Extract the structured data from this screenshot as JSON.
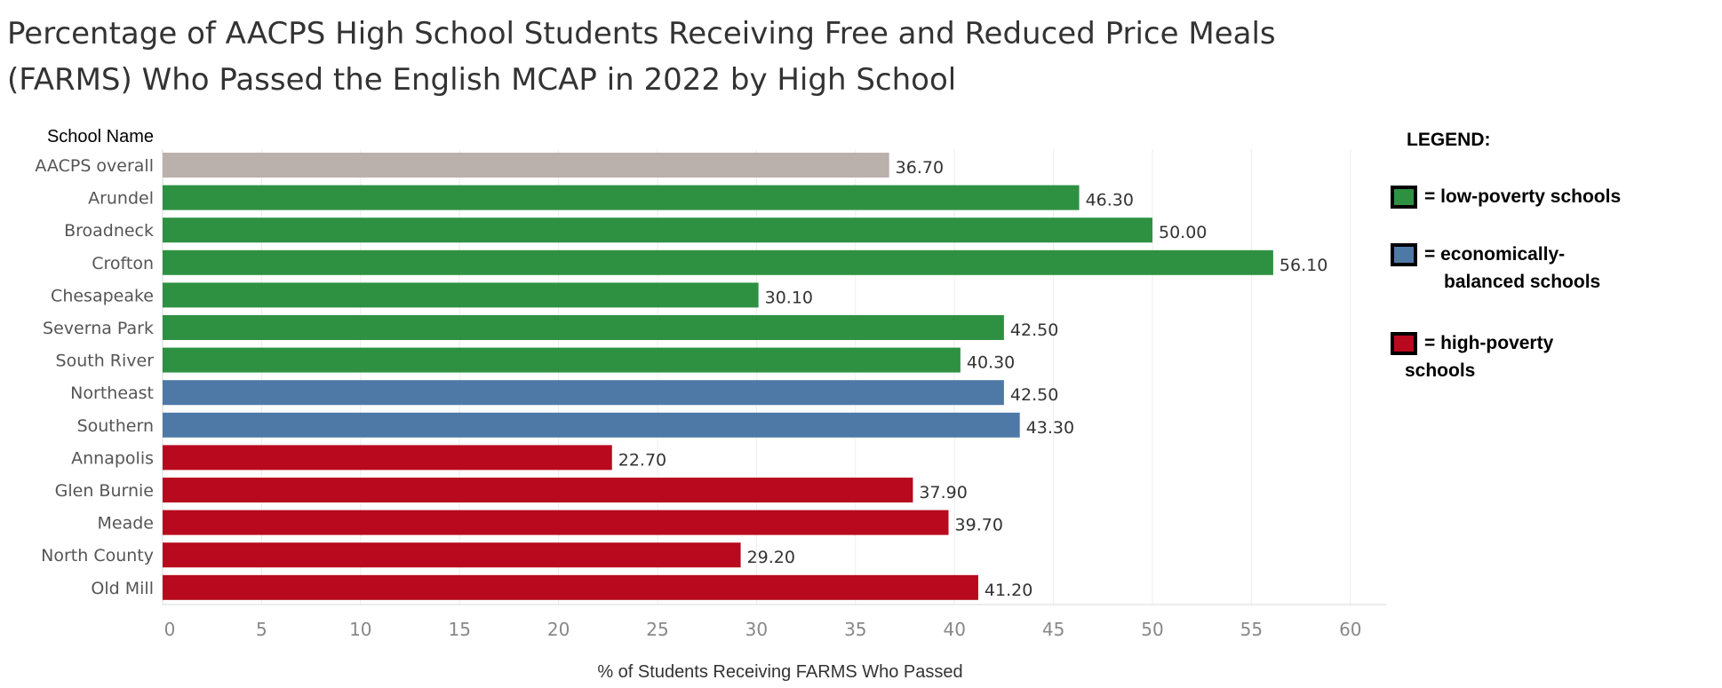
{
  "title": {
    "line1": "Percentage of AACPS High School Students Receiving Free and Reduced Price Meals",
    "line2": "(FARMS) Who Passed the English MCAP in 2022 by High School"
  },
  "chart_data": {
    "type": "bar",
    "orientation": "horizontal",
    "title": "Percentage of AACPS High School Students Receiving Free and Reduced Price Meals (FARMS) Who Passed the English MCAP in 2022 by High School",
    "category_header": "School Name",
    "xlabel": "% of Students Receiving FARMS Who Passed",
    "ylabel": "",
    "xlim": [
      0,
      60
    ],
    "xticks": [
      "0",
      "5",
      "10",
      "15",
      "20",
      "25",
      "30",
      "35",
      "40",
      "45",
      "50",
      "55",
      "60"
    ],
    "grid": "vertical gridlines",
    "categories": [
      "AACPS overall",
      "Arundel",
      "Broadneck",
      "Crofton",
      "Chesapeake",
      "Severna Park",
      "South River",
      "Northeast",
      "Southern",
      "Annapolis",
      "Glen Burnie",
      "Meade",
      "North County",
      "Old Mill"
    ],
    "values": [
      36.7,
      46.3,
      50.0,
      56.1,
      30.1,
      42.5,
      40.3,
      42.5,
      43.3,
      22.7,
      37.9,
      39.7,
      29.2,
      41.2
    ],
    "value_labels": [
      "36.70",
      "46.30",
      "50.00",
      "56.10",
      "30.10",
      "42.50",
      "40.30",
      "42.50",
      "43.30",
      "22.70",
      "37.90",
      "39.70",
      "29.20",
      "41.20"
    ],
    "groups": [
      "overall",
      "low",
      "low",
      "low",
      "low",
      "low",
      "low",
      "balanced",
      "balanced",
      "high",
      "high",
      "high",
      "high",
      "high"
    ],
    "colors": {
      "overall": "#bab0ac",
      "low": "#2e9142",
      "balanced": "#4e79a7",
      "high": "#b8091e"
    },
    "legend_position": "right"
  },
  "legend": {
    "title": "LEGEND:",
    "items": [
      {
        "group": "low",
        "line1": "= low-poverty schools",
        "line2": ""
      },
      {
        "group": "balanced",
        "line1": "=  economically-",
        "line2": "balanced schools"
      },
      {
        "group": "high",
        "line1": "= high-poverty",
        "line2": "schools"
      }
    ]
  }
}
